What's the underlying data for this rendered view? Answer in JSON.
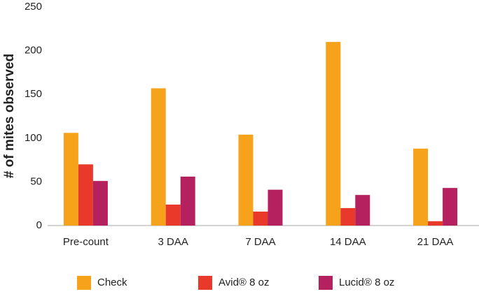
{
  "chart_data": {
    "type": "bar",
    "y_label": "# of mites observed",
    "categories": [
      "Pre-count",
      "3 DAA",
      "7 DAA",
      "14 DAA",
      "21 DAA"
    ],
    "series": [
      {
        "name": "Check",
        "color": "#f7a21b",
        "values": [
          106,
          157,
          104,
          210,
          88
        ]
      },
      {
        "name": "Avid® 8 oz",
        "color": "#e8392b",
        "values": [
          70,
          24,
          16,
          20,
          5
        ]
      },
      {
        "name": "Lucid® 8 oz",
        "color": "#b5205e",
        "values": [
          51,
          56,
          41,
          35,
          43
        ]
      }
    ],
    "ylim": [
      0,
      250
    ],
    "yticks": [
      0,
      50,
      100,
      150,
      200,
      250
    ],
    "grid": false,
    "legend": "bottom"
  }
}
